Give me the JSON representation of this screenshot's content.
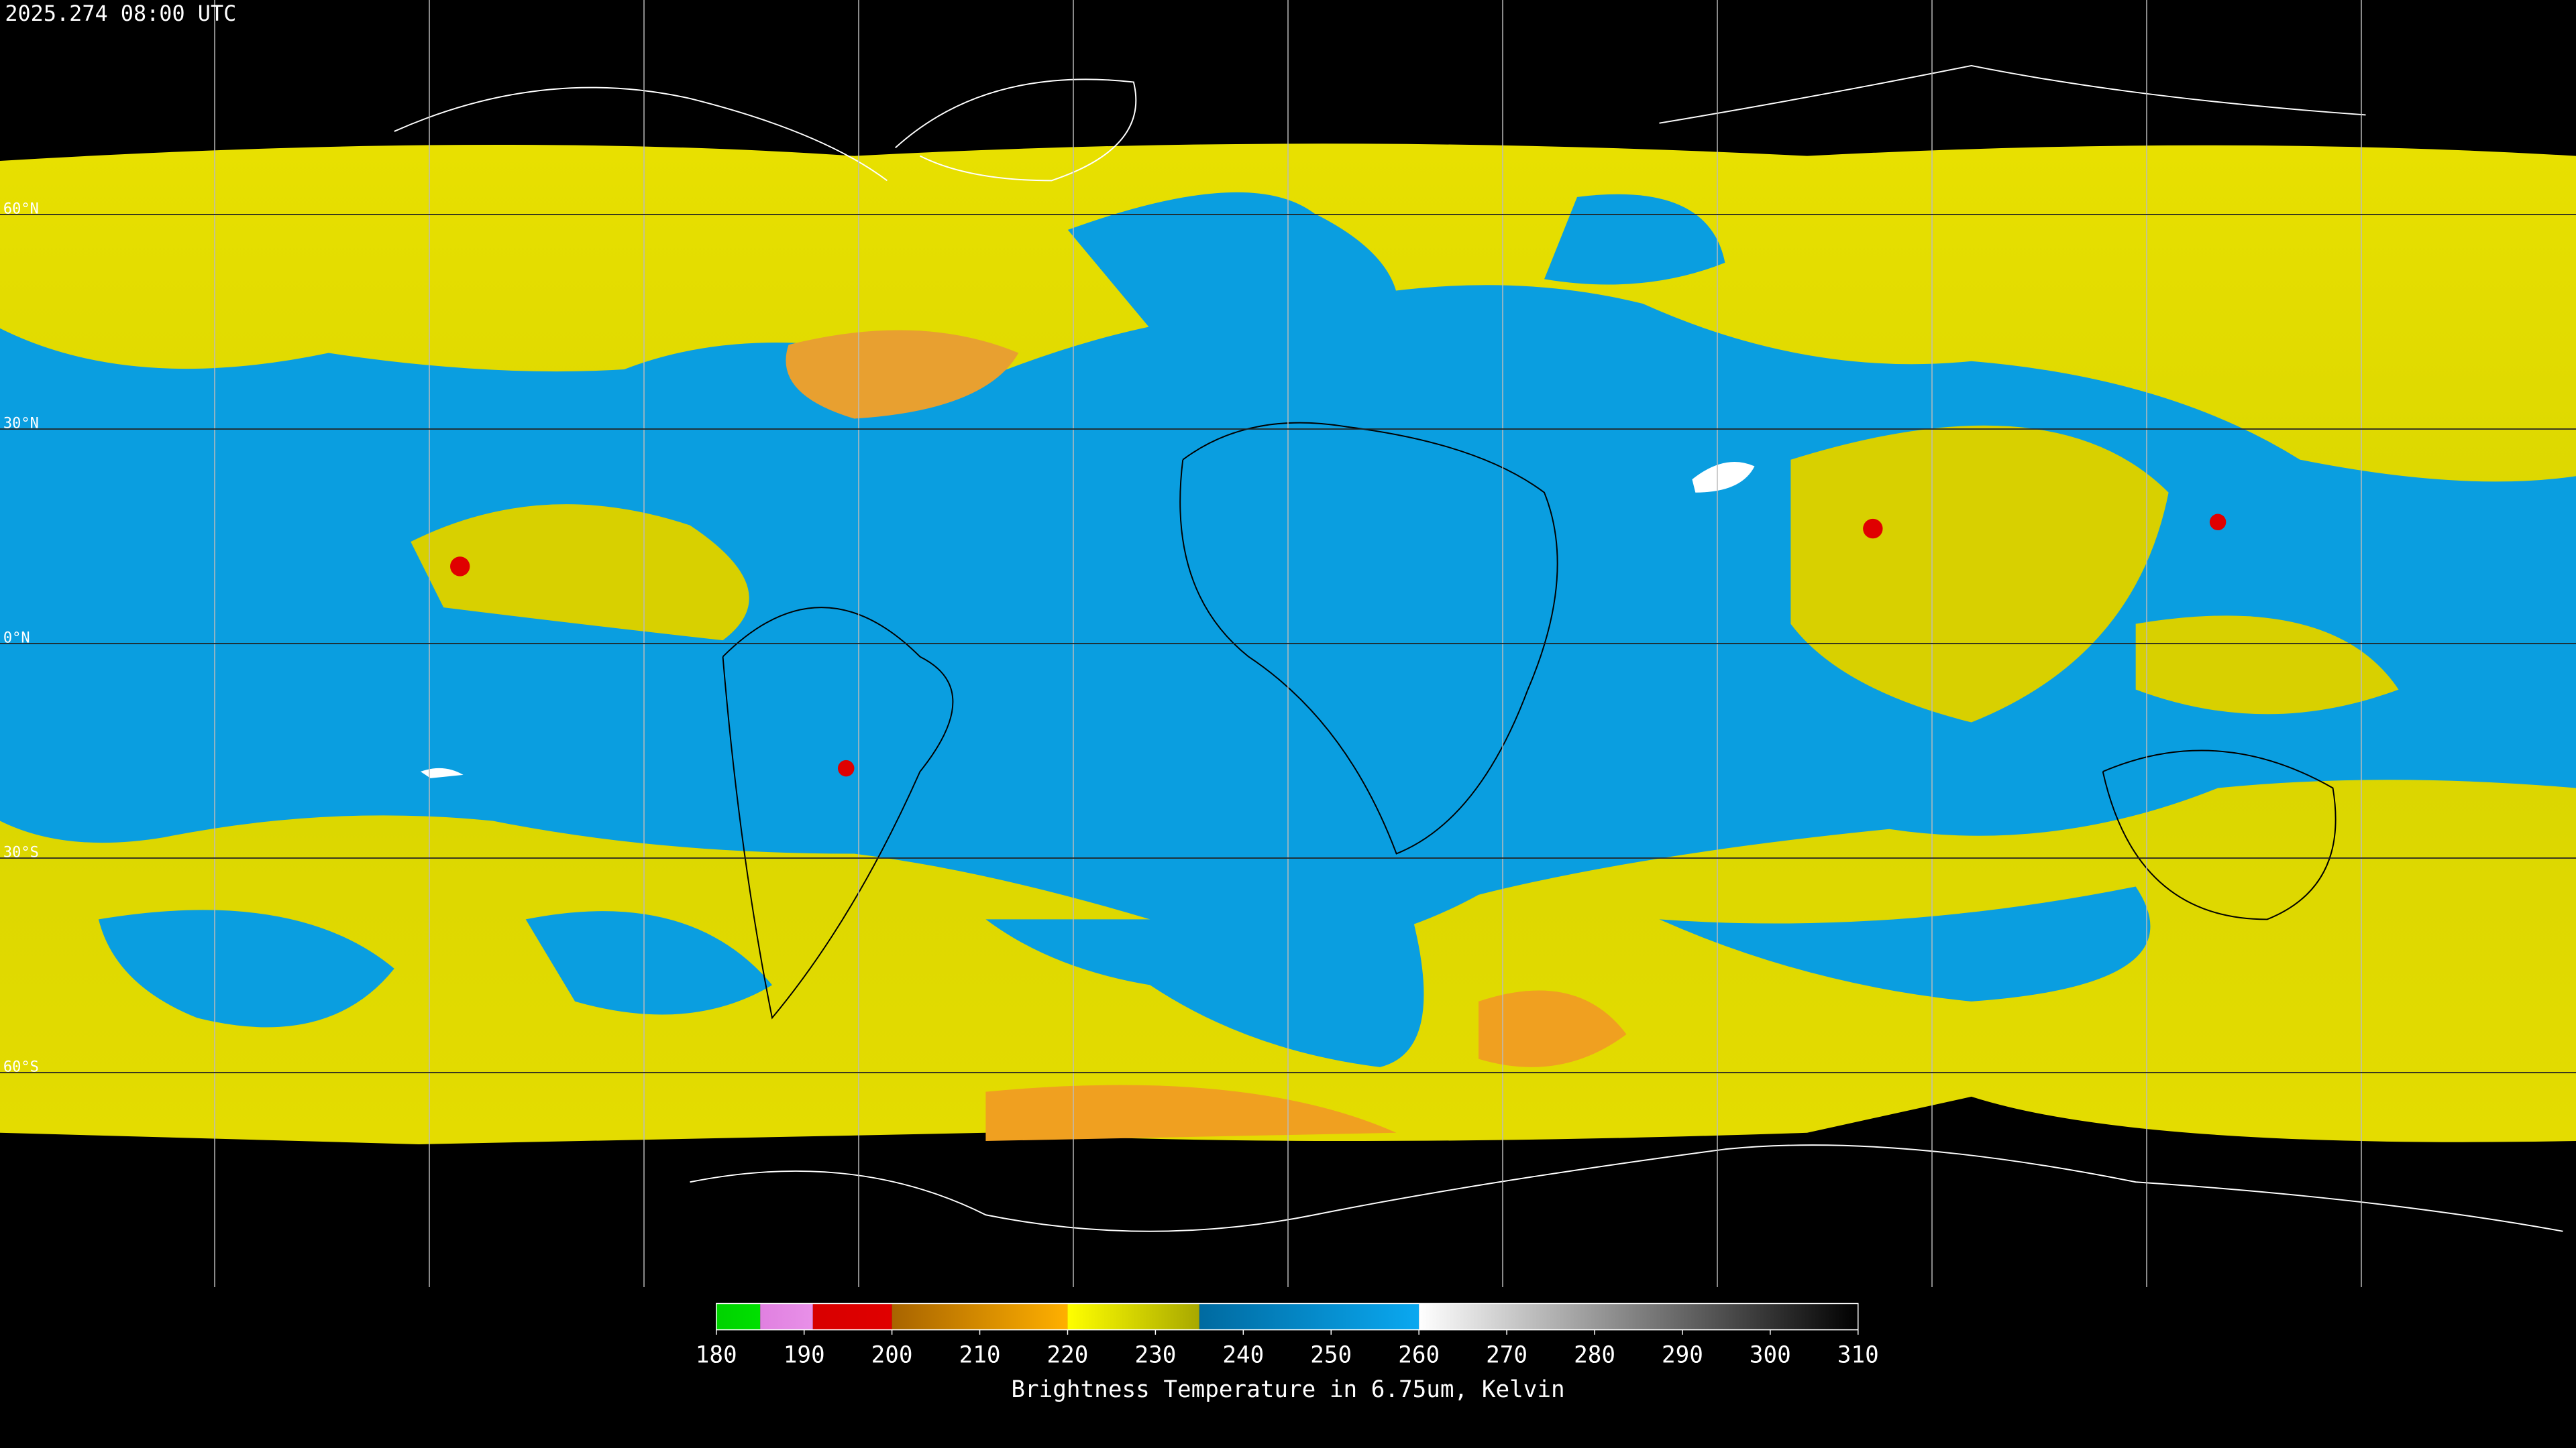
{
  "header": {
    "title": "2025.274 08:00 UTC"
  },
  "map": {
    "parallels": [
      {
        "value": 60,
        "label": "60°N"
      },
      {
        "value": 30,
        "label": "30°N"
      },
      {
        "value": 0,
        "label": "0°N"
      },
      {
        "value": -30,
        "label": "30°S"
      },
      {
        "value": -60,
        "label": "60°S"
      }
    ]
  },
  "colorbar": {
    "label": "Brightness Temperature in 6.75um, Kelvin",
    "range": [
      180,
      310
    ],
    "ticks": [
      180,
      190,
      200,
      210,
      220,
      230,
      240,
      250,
      260,
      270,
      280,
      290,
      300,
      310
    ],
    "segments": [
      {
        "from": 180,
        "to": 185,
        "colors": [
          "#00d200",
          "#00e000"
        ]
      },
      {
        "from": 185,
        "to": 191,
        "colors": [
          "#e080e0",
          "#e890e8"
        ]
      },
      {
        "from": 191,
        "to": 200,
        "colors": [
          "#d80000",
          "#e00000"
        ]
      },
      {
        "from": 200,
        "to": 220,
        "colors": [
          "#a86400",
          "#ffb000"
        ]
      },
      {
        "from": 220,
        "to": 235,
        "colors": [
          "#ffff00",
          "#a8a800"
        ]
      },
      {
        "from": 235,
        "to": 260,
        "colors": [
          "#006aa0",
          "#0aa8f0"
        ]
      },
      {
        "from": 260,
        "to": 310,
        "colors": [
          "#ffffff",
          "#000000"
        ]
      }
    ]
  }
}
